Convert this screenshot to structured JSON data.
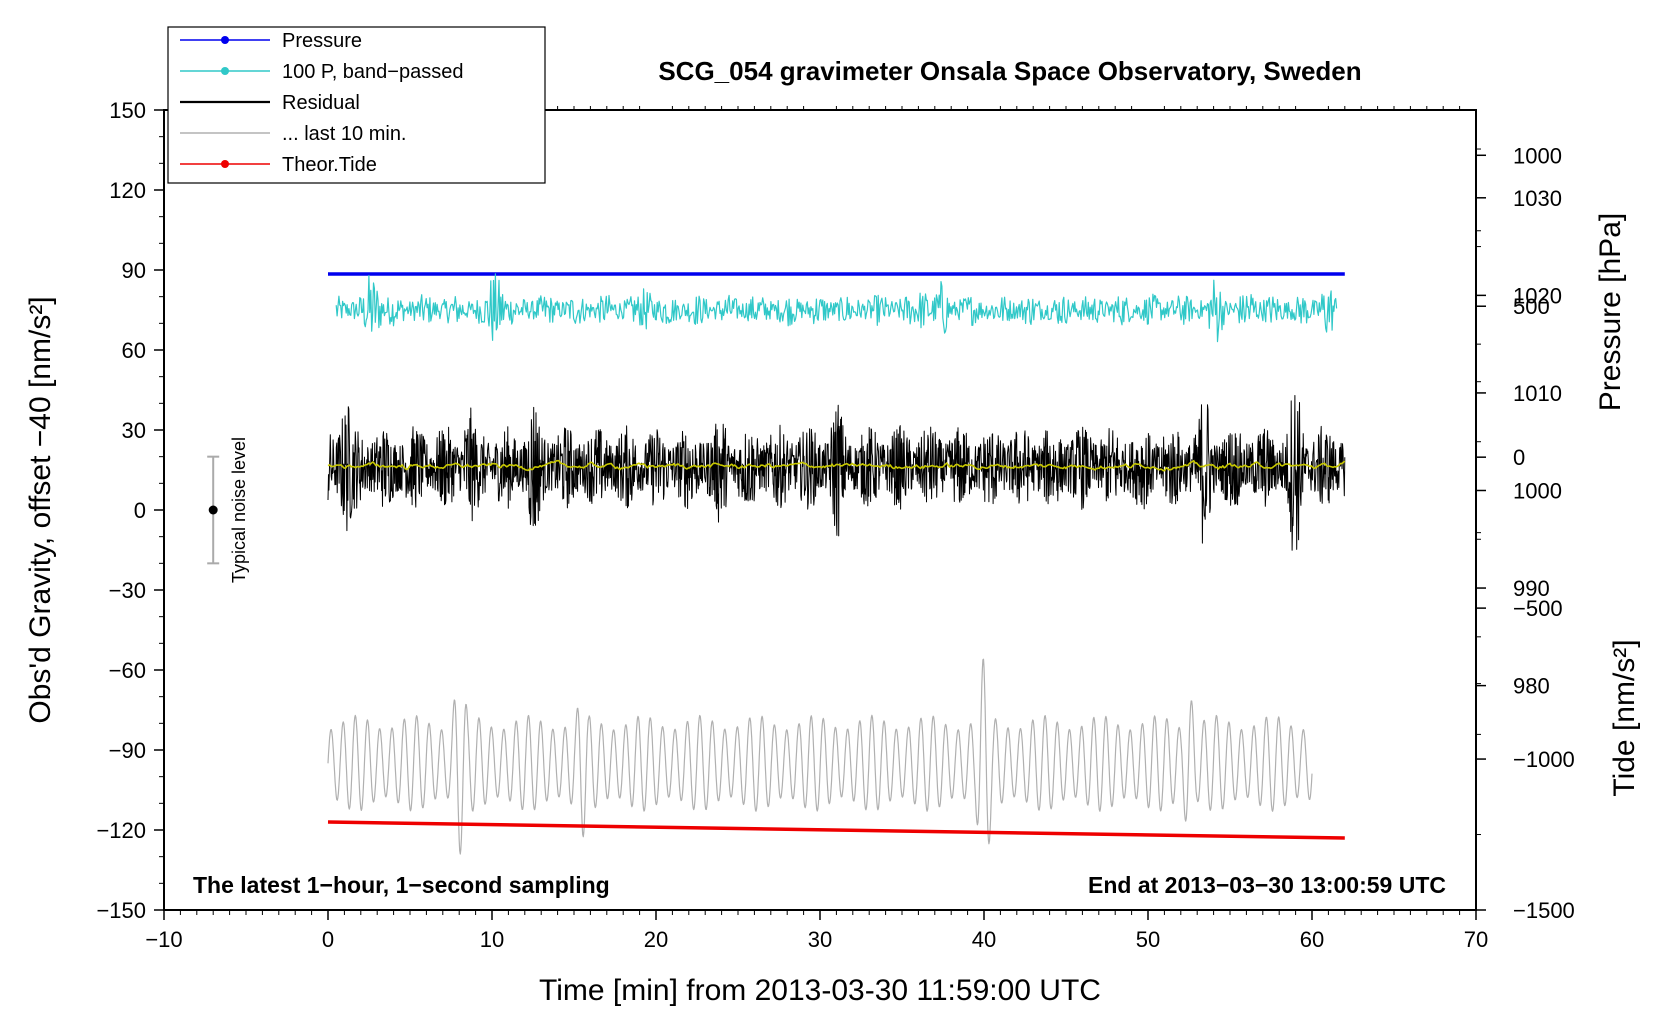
{
  "chart_data": {
    "type": "line",
    "title": "SCG_054 gravimeter Onsala Space Observatory, Sweden",
    "xlabel": "Time [min] from 2013-03-30 11:59:00 UTC",
    "ylabel_left": "Obs'd Gravity, offset −40 [nm/s²]",
    "ylabel_right_pressure": "Pressure [hPa]",
    "ylabel_right_tide": "Tide [nm/s²]",
    "xlim": [
      -10,
      70
    ],
    "ylim": [
      -150,
      150
    ],
    "x_ticks": [
      -10,
      0,
      10,
      20,
      30,
      40,
      50,
      60,
      70
    ],
    "x_tick_labels": [
      "−10",
      "0",
      "10",
      "20",
      "30",
      "40",
      "50",
      "60",
      "70"
    ],
    "y_ticks": [
      -150,
      -120,
      -90,
      -60,
      -30,
      0,
      30,
      60,
      90,
      120,
      150
    ],
    "y_tick_labels": [
      "−150",
      "−120",
      "−90",
      "−60",
      "−30",
      "0",
      "30",
      "60",
      "90",
      "120",
      "150"
    ],
    "pressure_ticks": [
      980,
      990,
      1000,
      1010,
      1020,
      1030
    ],
    "pressure_tick_labels": [
      "980",
      "990",
      "1000",
      "1010",
      "1020",
      "1030"
    ],
    "pressure_axis_range": [
      957,
      1039
    ],
    "tide_ticks": [
      -1500,
      -1000,
      -500,
      0,
      500,
      1000
    ],
    "tide_tick_labels": [
      "−1500",
      "−1000",
      "−500",
      "0",
      "500",
      "1000"
    ],
    "tide_axis_range": [
      -1500,
      1150
    ],
    "legend": [
      {
        "label": "Pressure",
        "color": "#0000ee",
        "marker": true
      },
      {
        "label": "100 P, band−passed",
        "color": "#30c8c8",
        "marker": true
      },
      {
        "label": "Residual",
        "color": "#000000",
        "marker": false
      },
      {
        "label": "... last 10 min.",
        "color": "#b0b0b0",
        "marker": false
      },
      {
        "label": "Theor.Tide",
        "color": "#ee0000",
        "marker": true
      }
    ],
    "annotations": {
      "left_bottom": "The latest 1−hour, 1−second sampling",
      "right_bottom": "End at 2013−03−30 13:00:59 UTC",
      "noise_label": "Typical noise level"
    },
    "typical_noise": {
      "x": -7,
      "center": 0,
      "range": [
        -20,
        20
      ]
    },
    "series": [
      {
        "name": "Pressure",
        "axis": "left",
        "color": "#0000ee",
        "kind": "flat",
        "x_range": [
          0,
          62
        ],
        "value": 88.5
      },
      {
        "name": "100 P, band−passed",
        "axis": "left",
        "color": "#30c8c8",
        "kind": "noise",
        "x_range": [
          0.5,
          61.5
        ],
        "center": 75,
        "amplitude": 6,
        "bursts": [
          {
            "x": 2.8,
            "amp": 20
          },
          {
            "x": 10.3,
            "amp": 22
          },
          {
            "x": 19.5,
            "amp": 12
          },
          {
            "x": 36.3,
            "amp": 13
          },
          {
            "x": 37.5,
            "amp": 12
          },
          {
            "x": 54.2,
            "amp": 15
          },
          {
            "x": 56.3,
            "amp": 12
          },
          {
            "x": 60.8,
            "amp": 14
          }
        ]
      },
      {
        "name": "Residual",
        "axis": "left",
        "color": "#000000",
        "kind": "noise",
        "x_range": [
          0,
          62
        ],
        "center": 16,
        "amplitude": 16,
        "bursts": [
          {
            "x": 1,
            "amp": 34
          },
          {
            "x": 8.5,
            "amp": 28
          },
          {
            "x": 12.5,
            "amp": 30
          },
          {
            "x": 24,
            "amp": 24
          },
          {
            "x": 31,
            "amp": 28
          },
          {
            "x": 53.5,
            "amp": 32
          },
          {
            "x": 59,
            "amp": 36
          }
        ]
      },
      {
        "name": "Residual (smoothed)",
        "axis": "left",
        "color": "#c8c800",
        "kind": "noise",
        "x_range": [
          0,
          62
        ],
        "center": 16.5,
        "amplitude": 1.5,
        "bursts": []
      },
      {
        "name": "... last 10 min.",
        "axis": "left",
        "color": "#b0b0b0",
        "kind": "oscillation",
        "x_range": [
          0,
          60
        ],
        "center": -95,
        "amplitude": 18,
        "period": 0.75,
        "bursts": [
          {
            "x": 8,
            "amp": 38
          },
          {
            "x": 15.5,
            "amp": 28
          },
          {
            "x": 40,
            "amp": 40
          },
          {
            "x": 52.5,
            "amp": 35
          }
        ]
      },
      {
        "name": "Theor.Tide",
        "axis": "left",
        "color": "#ee0000",
        "kind": "linear",
        "x": [
          0,
          62
        ],
        "y": [
          -117,
          -123
        ]
      }
    ]
  }
}
